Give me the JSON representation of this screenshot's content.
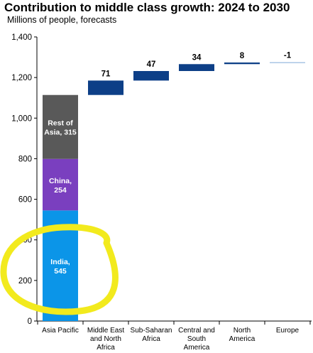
{
  "chart_data": {
    "type": "bar",
    "title": "Contribution to middle class growth: 2024 to 2030",
    "subtitle": "Millions of people, forecasts",
    "ylim": [
      0,
      1400
    ],
    "yticks": [
      "0",
      "200",
      "400",
      "600",
      "800",
      "1,000",
      "1,200",
      "1,400"
    ],
    "grid": false,
    "categories": [
      [
        "Asia Pacific"
      ],
      [
        "Middle East",
        "and North",
        "Africa"
      ],
      [
        "Sub-Saharan",
        "Africa"
      ],
      [
        "Central and",
        "South",
        "America"
      ],
      [
        "North",
        "America"
      ],
      [
        "Europe"
      ]
    ],
    "stacked_first_bar": [
      {
        "label": [
          "India,",
          "545"
        ],
        "value": 545,
        "color": "#0B95E8"
      },
      {
        "label": [
          "China,",
          "254"
        ],
        "value": 254,
        "color": "#7A3FBF"
      },
      {
        "label": [
          "Rest of",
          "Asia, 315"
        ],
        "value": 315,
        "color": "#595959"
      }
    ],
    "waterfall": [
      {
        "label": "71",
        "value": 71
      },
      {
        "label": "47",
        "value": 47
      },
      {
        "label": "34",
        "value": 34
      },
      {
        "label": "8",
        "value": 8
      },
      {
        "label": "-1",
        "value": -1
      }
    ],
    "waterfall_color": "#0D3F87",
    "annotation_color": "#F2EA1D"
  }
}
